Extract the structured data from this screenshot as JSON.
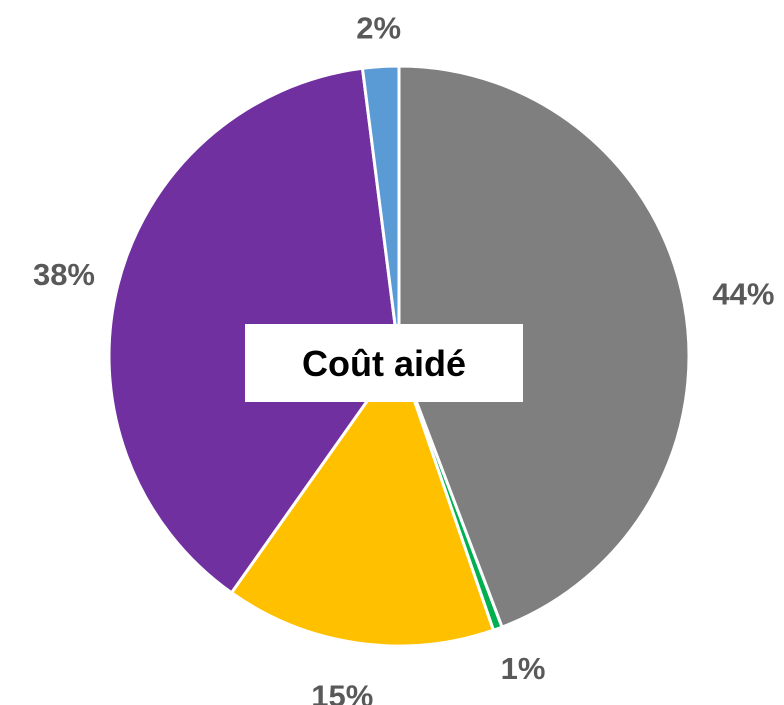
{
  "chart_data": {
    "type": "pie",
    "title": "Coût aidé",
    "slices": [
      {
        "value": 44,
        "label": "44%",
        "color": "#7f7f7f"
      },
      {
        "value": 0.5,
        "label": "1%",
        "color": "#00b050"
      },
      {
        "value": 15,
        "label": "15%",
        "color": "#ffc000"
      },
      {
        "value": 38,
        "label": "38%",
        "color": "#7030a0"
      },
      {
        "value": 2,
        "label": "2%",
        "color": "#5b9bd5"
      }
    ],
    "start": "12 o'clock",
    "direction": "clockwise",
    "legend": "none"
  }
}
